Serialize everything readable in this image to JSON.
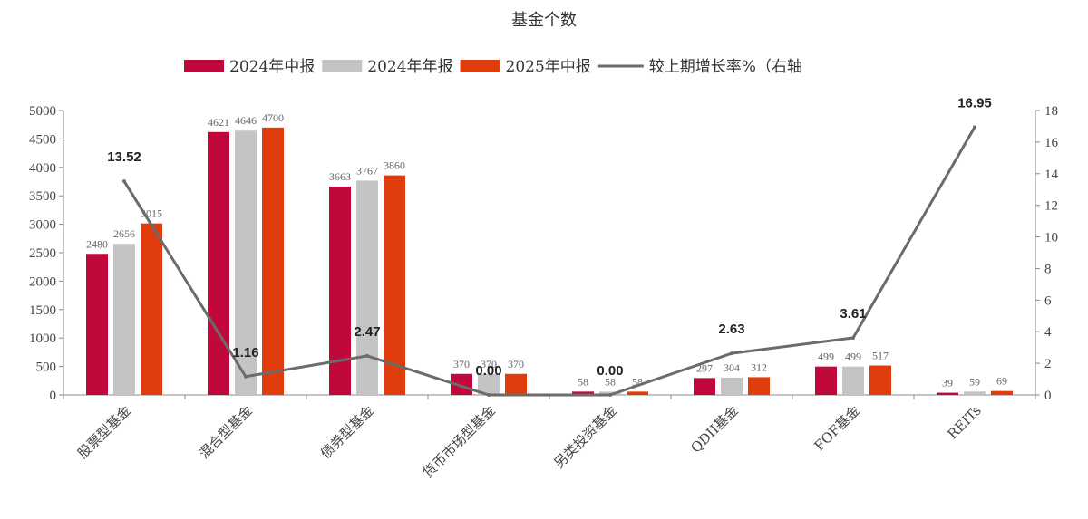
{
  "chart_data": {
    "type": "bar",
    "title": "基金个数",
    "categories": [
      "股票型基金",
      "混合型基金",
      "债券型基金",
      "货币市场型基金",
      "另类投资基金",
      "QDII基金",
      "FOF基金",
      "REITs"
    ],
    "series": [
      {
        "name": "2024年中报",
        "kind": "bar",
        "color": "#c0083a",
        "values": [
          2480,
          4621,
          3663,
          370,
          58,
          297,
          499,
          39
        ]
      },
      {
        "name": "2024年年报",
        "kind": "bar",
        "color": "#c4c4c4",
        "values": [
          2656,
          4646,
          3767,
          370,
          58,
          304,
          499,
          59
        ]
      },
      {
        "name": "2025年中报",
        "kind": "bar",
        "color": "#e03c0c",
        "values": [
          3015,
          4700,
          3860,
          370,
          58,
          312,
          517,
          69
        ]
      },
      {
        "name": "较上期增长率%（右轴",
        "kind": "line",
        "axis": "right",
        "color": "#6b6b6b",
        "values": [
          13.52,
          1.16,
          2.47,
          0.0,
          0.0,
          2.63,
          3.61,
          16.95
        ]
      }
    ],
    "line_label_texts": [
      "13.52",
      "1.16",
      "2.47",
      "0.00",
      "0.00",
      "2.63",
      "3.61",
      "16.95"
    ],
    "y_left": {
      "min": 0,
      "max": 5000,
      "step": 500
    },
    "y_right": {
      "min": 0,
      "max": 18,
      "step": 2
    },
    "legend_position": "top",
    "grid": false
  }
}
